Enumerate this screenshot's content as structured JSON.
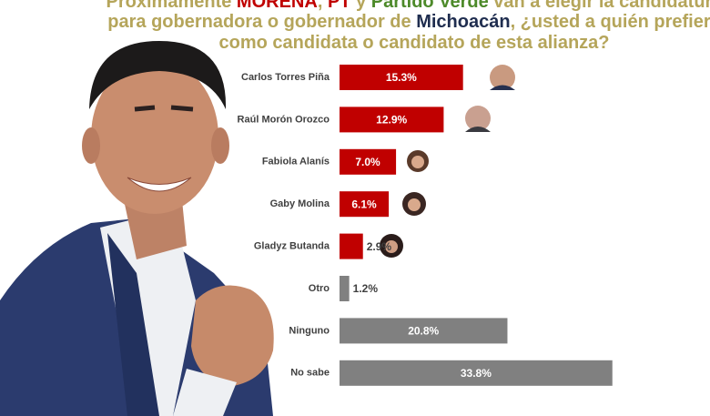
{
  "chart_data": {
    "type": "bar",
    "orientation": "horizontal",
    "title": [
      [
        {
          "text": "Próximamente ",
          "color": "#b5a55a"
        },
        {
          "text": "MORENA",
          "color": "#c00000"
        },
        {
          "text": ", ",
          "color": "#b5a55a"
        },
        {
          "text": "PT",
          "color": "#c00000"
        },
        {
          "text": " y ",
          "color": "#b5a55a"
        },
        {
          "text": "Partido Verde",
          "color": "#4d8a2a"
        },
        {
          "text": " van a elegir la candidatura",
          "color": "#b5a55a"
        }
      ],
      [
        {
          "text": "para gobernadora o gobernador de ",
          "color": "#b5a55a"
        },
        {
          "text": "Michoacán",
          "color": "#1f2d4f"
        },
        {
          "text": ", ¿usted a quién prefiere",
          "color": "#b5a55a"
        }
      ],
      [
        {
          "text": "como candidata o candidato de esta alianza?",
          "color": "#b5a55a"
        }
      ]
    ],
    "categories": [
      "Carlos Torres Piña",
      "Raúl Morón Orozco",
      "Fabiola Alanís",
      "Gaby Molina",
      "Gladyz Butanda",
      "Otro",
      "Ninguno",
      "No sabe"
    ],
    "values": [
      15.3,
      12.9,
      7.0,
      6.1,
      2.9,
      1.2,
      20.8,
      33.8
    ],
    "value_labels": [
      "15.3%",
      "12.9%",
      "7.0%",
      "6.1%",
      "2.9%",
      "1.2%",
      "20.8%",
      "33.8%"
    ],
    "colors": [
      "#c00000",
      "#c00000",
      "#c00000",
      "#c00000",
      "#c00000",
      "#808080",
      "#808080",
      "#808080"
    ],
    "xlim": [
      0,
      38
    ]
  }
}
